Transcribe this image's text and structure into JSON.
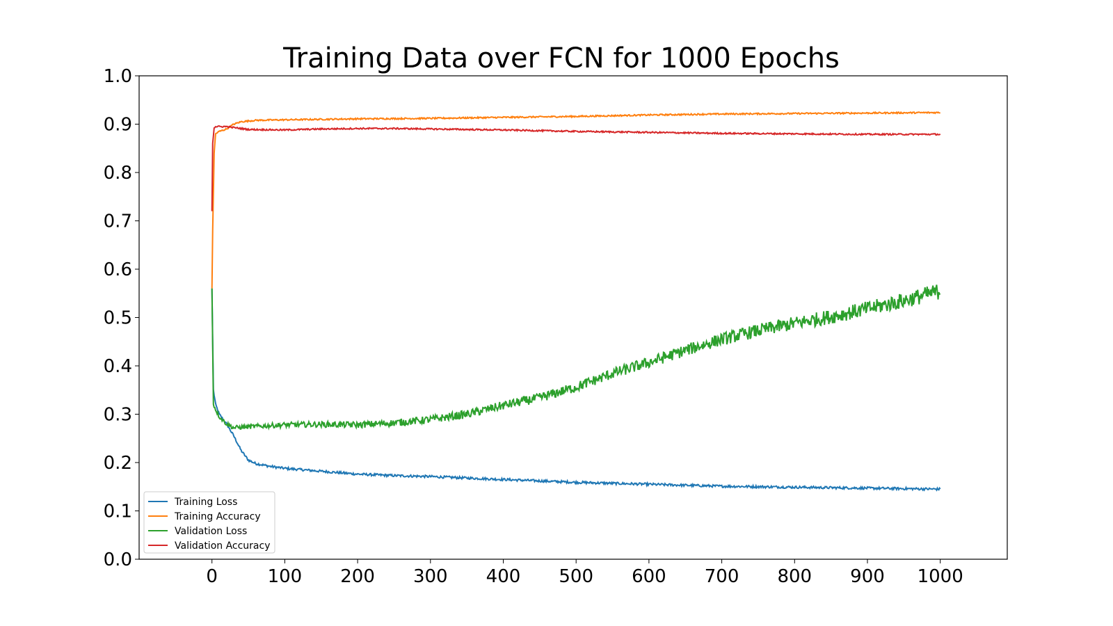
{
  "chart_data": {
    "type": "line",
    "title": "Training Data over FCN for 1000 Epochs",
    "xlabel": "",
    "ylabel": "",
    "xlim": [
      -100,
      1092
    ],
    "ylim": [
      0.0,
      1.0
    ],
    "x_ticks": [
      0,
      100,
      200,
      300,
      400,
      500,
      600,
      700,
      800,
      900,
      1000
    ],
    "y_ticks": [
      0.0,
      0.1,
      0.2,
      0.3,
      0.4,
      0.5,
      0.6,
      0.7,
      0.8,
      0.9,
      1.0
    ],
    "grid": false,
    "legend_position": "lower-left",
    "series": [
      {
        "name": "Training Loss",
        "color": "#1f77b4",
        "x": [
          0,
          2,
          5,
          10,
          20,
          30,
          40,
          50,
          60,
          80,
          100,
          150,
          200,
          250,
          300,
          350,
          400,
          450,
          500,
          550,
          600,
          650,
          700,
          750,
          800,
          850,
          900,
          950,
          1000
        ],
        "y": [
          0.56,
          0.35,
          0.32,
          0.3,
          0.28,
          0.255,
          0.225,
          0.205,
          0.198,
          0.192,
          0.188,
          0.182,
          0.176,
          0.173,
          0.171,
          0.168,
          0.165,
          0.162,
          0.159,
          0.157,
          0.155,
          0.153,
          0.151,
          0.15,
          0.149,
          0.148,
          0.147,
          0.146,
          0.145
        ]
      },
      {
        "name": "Training Accuracy",
        "color": "#ff7f0e",
        "x": [
          0,
          1,
          3,
          5,
          10,
          20,
          30,
          40,
          60,
          100,
          150,
          200,
          300,
          400,
          500,
          600,
          700,
          800,
          900,
          1000
        ],
        "y": [
          0.56,
          0.68,
          0.84,
          0.88,
          0.885,
          0.89,
          0.9,
          0.905,
          0.908,
          0.909,
          0.91,
          0.911,
          0.912,
          0.914,
          0.916,
          0.919,
          0.921,
          0.922,
          0.923,
          0.924
        ]
      },
      {
        "name": "Validation Loss",
        "color": "#2ca02c",
        "x": [
          0,
          2,
          5,
          10,
          20,
          30,
          50,
          100,
          150,
          200,
          250,
          300,
          350,
          400,
          450,
          500,
          550,
          600,
          650,
          700,
          750,
          800,
          850,
          900,
          950,
          1000
        ],
        "y": [
          0.56,
          0.32,
          0.31,
          0.295,
          0.28,
          0.272,
          0.274,
          0.278,
          0.279,
          0.278,
          0.282,
          0.289,
          0.3,
          0.318,
          0.334,
          0.356,
          0.384,
          0.407,
          0.432,
          0.455,
          0.473,
          0.488,
          0.502,
          0.518,
          0.535,
          0.555
        ]
      },
      {
        "name": "Validation Accuracy",
        "color": "#d62728",
        "x": [
          0,
          1,
          3,
          5,
          10,
          20,
          30,
          50,
          100,
          150,
          200,
          250,
          300,
          400,
          500,
          600,
          700,
          800,
          900,
          1000
        ],
        "y": [
          0.72,
          0.86,
          0.893,
          0.895,
          0.895,
          0.895,
          0.893,
          0.889,
          0.888,
          0.89,
          0.891,
          0.891,
          0.89,
          0.888,
          0.885,
          0.883,
          0.881,
          0.88,
          0.879,
          0.879
        ]
      }
    ]
  }
}
